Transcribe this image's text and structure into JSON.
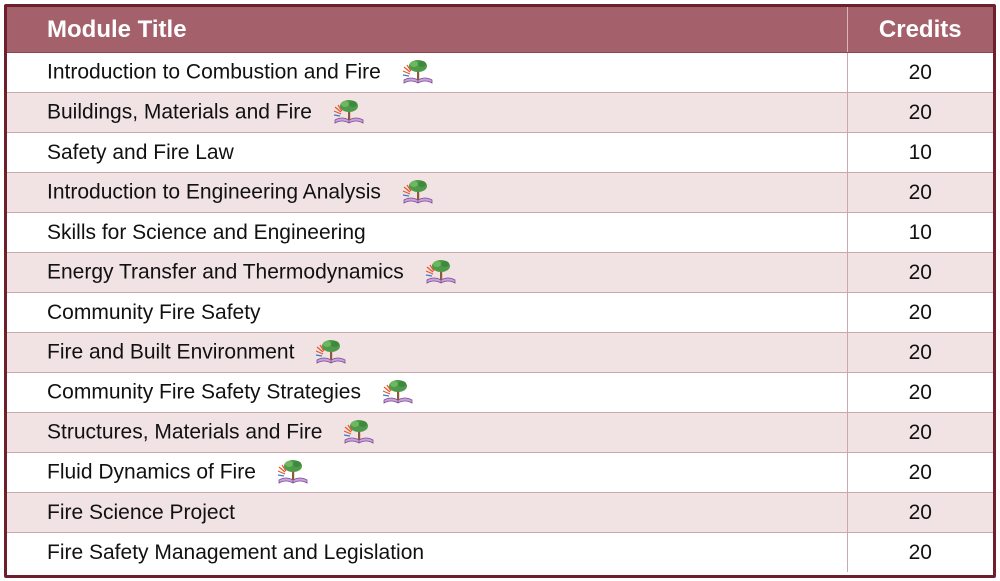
{
  "header": {
    "module_title": "Module Title",
    "credits": "Credits"
  },
  "rows": [
    {
      "title": "Introduction to Combustion and Fire",
      "credits": "20",
      "icon": "book-tree-icon"
    },
    {
      "title": "Buildings, Materials and Fire",
      "credits": "20",
      "icon": "book-tree-icon"
    },
    {
      "title": "Safety and Fire Law",
      "credits": "10",
      "icon": ""
    },
    {
      "title": "Introduction to Engineering Analysis",
      "credits": "20",
      "icon": "book-tree-icon"
    },
    {
      "title": "Skills for Science and Engineering",
      "credits": "10",
      "icon": ""
    },
    {
      "title": "Energy Transfer and Thermodynamics",
      "credits": "20",
      "icon": "book-tree-icon"
    },
    {
      "title": "Community Fire Safety",
      "credits": "20",
      "icon": ""
    },
    {
      "title": "Fire and Built Environment",
      "credits": "20",
      "icon": "book-tree-icon"
    },
    {
      "title": "Community Fire Safety Strategies",
      "credits": "20",
      "icon": "book-tree-icon"
    },
    {
      "title": "Structures, Materials and Fire",
      "credits": "20",
      "icon": "book-tree-icon"
    },
    {
      "title": "Fluid Dynamics of Fire",
      "credits": "20",
      "icon": "book-tree-icon"
    },
    {
      "title": "Fire Science Project",
      "credits": "20",
      "icon": ""
    },
    {
      "title": "Fire Safety Management and Legislation",
      "credits": "20",
      "icon": ""
    }
  ],
  "colors": {
    "header_bg": "#a4616b",
    "border": "#6e1f2c",
    "alt_row": "#f1e2e4"
  }
}
